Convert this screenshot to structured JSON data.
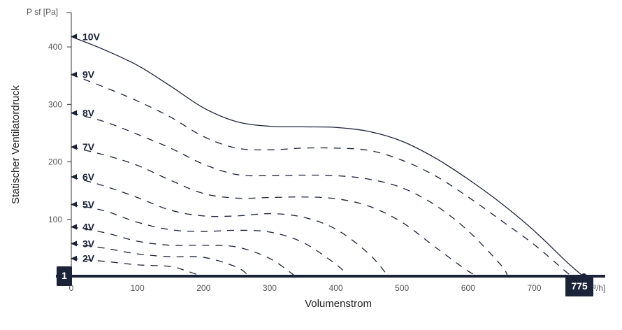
{
  "chart_data": {
    "type": "line",
    "ylabel": "Statischer Ventilatordruck",
    "y_unit": "P sf [Pa]",
    "xlabel": "Volumenstrom",
    "x_unit_partial": "³/h]",
    "xlim": [
      0,
      800
    ],
    "ylim": [
      0,
      460
    ],
    "x_ticks": [
      0,
      100,
      200,
      300,
      400,
      500,
      600,
      700
    ],
    "y_ticks": [
      0,
      100,
      200,
      300,
      400
    ],
    "grid": false,
    "colors": {
      "curve": "#1a2338",
      "axis": "#333333",
      "badge": "#1a2338"
    },
    "series": [
      {
        "name": "10V",
        "style": "solid",
        "x": [
          0,
          50,
          100,
          150,
          200,
          250,
          300,
          350,
          400,
          450,
          500,
          550,
          600,
          650,
          700,
          750,
          775
        ],
        "y": [
          418,
          395,
          368,
          332,
          294,
          270,
          262,
          261,
          260,
          253,
          236,
          207,
          170,
          128,
          80,
          25,
          0
        ]
      },
      {
        "name": "9V",
        "style": "dashed",
        "x": [
          0,
          50,
          100,
          150,
          200,
          250,
          300,
          350,
          400,
          450,
          500,
          550,
          600,
          650,
          700,
          750,
          760
        ],
        "y": [
          352,
          330,
          306,
          278,
          244,
          224,
          221,
          224,
          224,
          220,
          203,
          176,
          139,
          98,
          56,
          7,
          0
        ]
      },
      {
        "name": "8V",
        "style": "dashed",
        "x": [
          0,
          50,
          100,
          150,
          200,
          250,
          300,
          350,
          400,
          450,
          500,
          550,
          600,
          650,
          660
        ],
        "y": [
          285,
          270,
          248,
          224,
          196,
          178,
          176,
          177,
          176,
          170,
          155,
          125,
          80,
          20,
          0
        ]
      },
      {
        "name": "7V",
        "style": "dashed",
        "x": [
          0,
          50,
          100,
          150,
          200,
          250,
          300,
          350,
          400,
          450,
          500,
          550,
          600,
          620
        ],
        "y": [
          226,
          212,
          194,
          168,
          145,
          137,
          138,
          139,
          136,
          123,
          95,
          52,
          10,
          0
        ]
      },
      {
        "name": "6V",
        "style": "dashed",
        "x": [
          0,
          50,
          100,
          150,
          200,
          250,
          300,
          350,
          400,
          450,
          480
        ],
        "y": [
          174,
          158,
          138,
          116,
          106,
          106,
          110,
          104,
          83,
          40,
          0
        ]
      },
      {
        "name": "5V",
        "style": "dashed",
        "x": [
          0,
          50,
          100,
          150,
          200,
          250,
          300,
          350,
          400,
          420
        ],
        "y": [
          126,
          115,
          95,
          82,
          79,
          81,
          78,
          60,
          22,
          0
        ]
      },
      {
        "name": "4V",
        "style": "dashed",
        "x": [
          0,
          50,
          100,
          150,
          200,
          250,
          300,
          340
        ],
        "y": [
          87,
          77,
          62,
          55,
          55,
          52,
          32,
          0
        ]
      },
      {
        "name": "3V",
        "style": "dashed",
        "x": [
          0,
          50,
          100,
          150,
          200,
          250,
          270
        ],
        "y": [
          58,
          50,
          40,
          35,
          34,
          17,
          0
        ]
      },
      {
        "name": "2V",
        "style": "dashed",
        "x": [
          0,
          50,
          100,
          150,
          175,
          200
        ],
        "y": [
          32,
          27,
          21,
          18,
          10,
          0
        ]
      }
    ],
    "range_badges": {
      "min": "1",
      "max": "775"
    }
  }
}
